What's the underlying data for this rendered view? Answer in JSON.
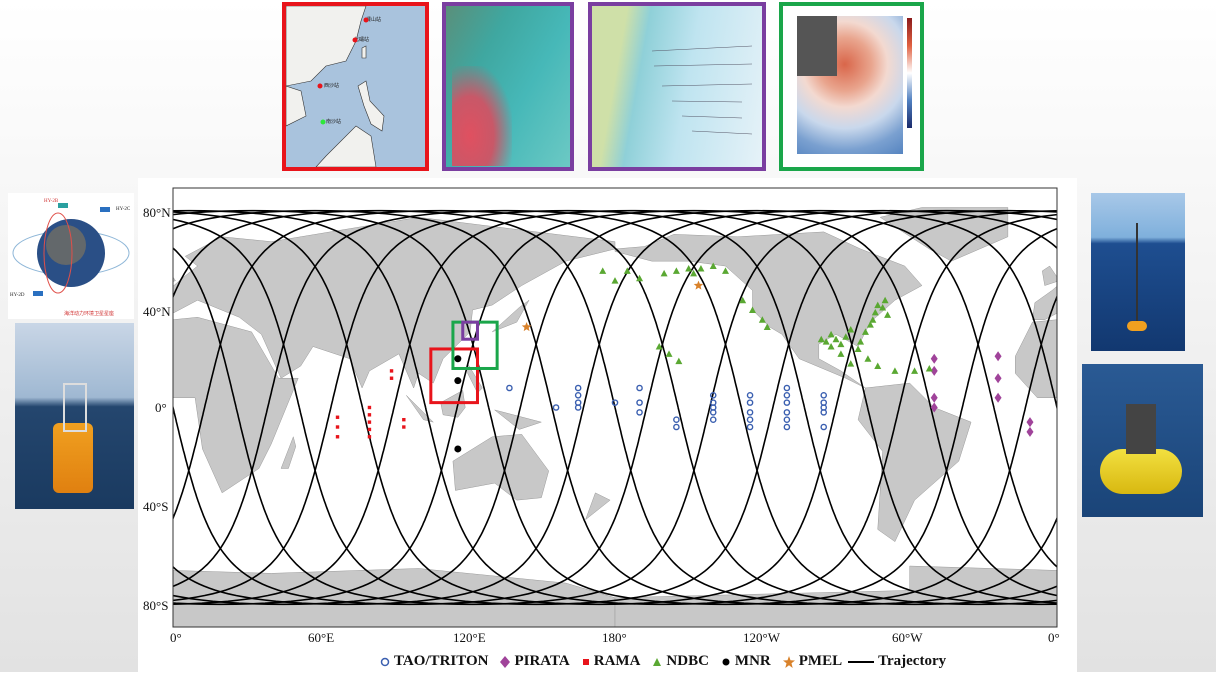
{
  "insets": [
    {
      "name": "south-china-sea-stations",
      "border_color": "#e8141b",
      "labels": [
        "嵊山站",
        "北礵站",
        "西沙站",
        "南沙站"
      ]
    },
    {
      "name": "bathymetry-map",
      "border_color": "#7a3ea0"
    },
    {
      "name": "buoy-track-map",
      "border_color": "#7a3ea0"
    },
    {
      "name": "anomaly-map",
      "border_color": "#1aa64a"
    }
  ],
  "photos": {
    "satellite_constellation": {
      "labels": [
        "HY-2B",
        "HY-2C",
        "HY-2D"
      ],
      "caption": "海洋动力环境卫星星座"
    },
    "buoys": [
      "left-buoy",
      "right-buoy-pole",
      "right-buoy-yellow"
    ]
  },
  "map": {
    "projection": "plate-carree",
    "lon_range": [
      0,
      360
    ],
    "lat_range": [
      -90,
      90
    ],
    "land_color": "#c8c8c8",
    "x_ticks": [
      "0°",
      "60°E",
      "120°E",
      "180°",
      "120°W",
      "60°W",
      "0°"
    ],
    "y_ticks": [
      "80°N",
      "40°N",
      "0°",
      "40°S",
      "80°S"
    ],
    "region_boxes": [
      {
        "color": "#e8141b",
        "lon": [
          105,
          124
        ],
        "lat": [
          2,
          24
        ]
      },
      {
        "color": "#1aa64a",
        "lon": [
          114,
          132
        ],
        "lat": [
          16,
          35
        ]
      },
      {
        "color": "#7a3ea0",
        "lon": [
          118,
          124
        ],
        "lat": [
          28,
          35
        ]
      }
    ],
    "trajectory": {
      "inclination_deg": 99.3,
      "orbits": 14,
      "color": "#000000"
    }
  },
  "stations": {
    "TAO/TRITON": {
      "color": "#3a5fb0",
      "marker": "circle",
      "points": [
        [
          137,
          8
        ],
        [
          156,
          0
        ],
        [
          165,
          8
        ],
        [
          165,
          5
        ],
        [
          165,
          2
        ],
        [
          165,
          0
        ],
        [
          180,
          2
        ],
        [
          190,
          8
        ],
        [
          190,
          2
        ],
        [
          190,
          -2
        ],
        [
          205,
          -5
        ],
        [
          205,
          -8
        ],
        [
          220,
          5
        ],
        [
          220,
          2
        ],
        [
          220,
          0
        ],
        [
          220,
          -2
        ],
        [
          220,
          -5
        ],
        [
          235,
          5
        ],
        [
          235,
          2
        ],
        [
          235,
          -2
        ],
        [
          235,
          -5
        ],
        [
          235,
          -8
        ],
        [
          250,
          8
        ],
        [
          250,
          5
        ],
        [
          250,
          2
        ],
        [
          250,
          -2
        ],
        [
          250,
          -5
        ],
        [
          250,
          -8
        ],
        [
          265,
          5
        ],
        [
          265,
          2
        ],
        [
          265,
          0
        ],
        [
          265,
          -2
        ],
        [
          265,
          -8
        ]
      ]
    },
    "PIRATA": {
      "color": "#a0439a",
      "marker": "diamond",
      "points": [
        [
          310,
          20
        ],
        [
          310,
          15
        ],
        [
          310,
          4
        ],
        [
          310,
          0
        ],
        [
          336,
          21
        ],
        [
          336,
          12
        ],
        [
          336,
          4
        ],
        [
          349,
          -6
        ],
        [
          349,
          -10
        ]
      ]
    },
    "RAMA": {
      "color": "#e8141b",
      "marker": "square",
      "points": [
        [
          67,
          -4
        ],
        [
          67,
          -8
        ],
        [
          67,
          -12
        ],
        [
          80,
          0
        ],
        [
          80,
          -3
        ],
        [
          80,
          -6
        ],
        [
          80,
          -9
        ],
        [
          80,
          -12
        ],
        [
          89,
          15
        ],
        [
          89,
          12
        ],
        [
          94,
          -5
        ],
        [
          94,
          -8
        ]
      ]
    },
    "NDBC": {
      "color": "#5aa832",
      "marker": "triangle",
      "points": [
        [
          175,
          56
        ],
        [
          180,
          52
        ],
        [
          185,
          56
        ],
        [
          190,
          53
        ],
        [
          200,
          55
        ],
        [
          205,
          56
        ],
        [
          210,
          57
        ],
        [
          212,
          55
        ],
        [
          215,
          57
        ],
        [
          220,
          58
        ],
        [
          225,
          56
        ],
        [
          198,
          25
        ],
        [
          202,
          22
        ],
        [
          206,
          19
        ],
        [
          232,
          44
        ],
        [
          236,
          40
        ],
        [
          240,
          36
        ],
        [
          242,
          33
        ],
        [
          264,
          28
        ],
        [
          266,
          27
        ],
        [
          268,
          25
        ],
        [
          270,
          28
        ],
        [
          272,
          26
        ],
        [
          274,
          29
        ],
        [
          276,
          32
        ],
        [
          279,
          24
        ],
        [
          280,
          27
        ],
        [
          282,
          31
        ],
        [
          284,
          34
        ],
        [
          285,
          36
        ],
        [
          286,
          39
        ],
        [
          287,
          42
        ],
        [
          289,
          41
        ],
        [
          290,
          44
        ],
        [
          291,
          38
        ],
        [
          283,
          20
        ],
        [
          287,
          17
        ],
        [
          294,
          15
        ],
        [
          302,
          15
        ],
        [
          308,
          16
        ],
        [
          276,
          18
        ],
        [
          272,
          22
        ],
        [
          268,
          30
        ]
      ]
    },
    "MNR": {
      "color": "#000000",
      "marker": "dot",
      "points": [
        [
          116,
          20
        ],
        [
          116,
          11
        ],
        [
          116,
          -17
        ]
      ]
    },
    "PMEL": {
      "color": "#d9822b",
      "marker": "star",
      "points": [
        [
          144,
          33
        ],
        [
          214,
          50
        ]
      ]
    }
  },
  "legend": [
    {
      "label": "TAO/TRITON",
      "marker": "circle",
      "color": "#3a5fb0"
    },
    {
      "label": "PIRATA",
      "marker": "diamond",
      "color": "#a0439a"
    },
    {
      "label": "RAMA",
      "marker": "square",
      "color": "#e8141b"
    },
    {
      "label": "NDBC",
      "marker": "triangle",
      "color": "#5aa832"
    },
    {
      "label": "MNR",
      "marker": "dot",
      "color": "#000000"
    },
    {
      "label": "PMEL",
      "marker": "star",
      "color": "#d9822b"
    },
    {
      "label": "Trajectory",
      "marker": "line",
      "color": "#000000"
    }
  ]
}
